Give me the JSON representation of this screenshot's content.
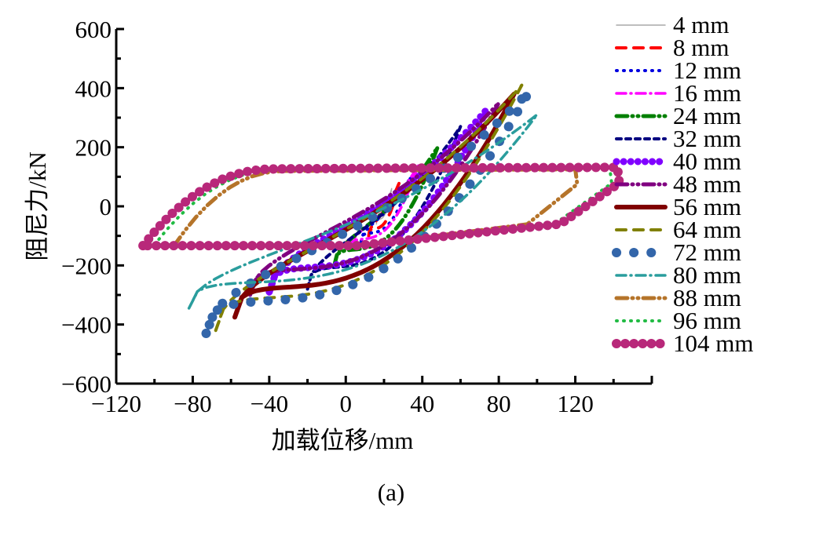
{
  "chart_data": {
    "type": "line",
    "title": "",
    "xlabel": "加载位移/mm",
    "ylabel": "阻尼力/kN",
    "caption": "(a)",
    "xlim": [
      -120,
      160
    ],
    "ylim": [
      -600,
      600
    ],
    "xticks": [
      -120,
      -80,
      -40,
      0,
      40,
      80,
      120
    ],
    "xtick_labels": [
      "−120",
      "−80",
      "−40",
      "0",
      "40",
      "80",
      "120"
    ],
    "yticks": [
      -600,
      -400,
      -200,
      0,
      200,
      400,
      600
    ],
    "ytick_labels": [
      "−600",
      "−400",
      "−200",
      "0",
      "200",
      "400",
      "600"
    ],
    "grid": false,
    "legend_position": "right",
    "series": [
      {
        "name": "4 mm",
        "color": "#a8a8a8",
        "style": "solid",
        "xrange": [
          16,
          24
        ],
        "force_range": [
          -60,
          60
        ],
        "shape": "lens"
      },
      {
        "name": "8 mm",
        "color": "#ff0000",
        "style": "dash",
        "xrange": [
          12,
          28
        ],
        "force_range": [
          -100,
          80
        ],
        "shape": "lens"
      },
      {
        "name": "12 mm",
        "color": "#0000e0",
        "style": "dot",
        "xrange": [
          8,
          34
        ],
        "force_range": [
          -120,
          100
        ],
        "shape": "lens"
      },
      {
        "name": "16 mm",
        "color": "#ff00ff",
        "style": "dashdot",
        "xrange": [
          2,
          38
        ],
        "force_range": [
          -150,
          140
        ],
        "shape": "lens"
      },
      {
        "name": "24 mm",
        "color": "#008000",
        "style": "dashdotdot",
        "xrange": [
          -6,
          48
        ],
        "force_range": [
          -200,
          200
        ],
        "shape": "lens"
      },
      {
        "name": "32 mm",
        "color": "#000080",
        "style": "shortdash",
        "xrange": [
          -20,
          60
        ],
        "force_range": [
          -280,
          270
        ],
        "shape": "lens"
      },
      {
        "name": "40 mm",
        "color": "#8000ff",
        "style": "dense-dot",
        "xrange": [
          -40,
          74
        ],
        "force_range": [
          -290,
          330
        ],
        "shape": "lens"
      },
      {
        "name": "48 mm",
        "color": "#800080",
        "style": "dashdotdot",
        "xrange": [
          -50,
          80
        ],
        "force_range": [
          -300,
          350
        ],
        "shape": "lens"
      },
      {
        "name": "56 mm",
        "color": "#800000",
        "style": "solid-thick",
        "xrange": [
          -58,
          88
        ],
        "force_range": [
          -375,
          380
        ],
        "shape": "lens"
      },
      {
        "name": "64 mm",
        "color": "#808000",
        "style": "dash",
        "xrange": [
          -68,
          92
        ],
        "force_range": [
          -420,
          410
        ],
        "shape": "lens"
      },
      {
        "name": "72 mm",
        "color": "#3366aa",
        "style": "big-dot",
        "xrange": [
          -73,
          96
        ],
        "force_range": [
          -430,
          390
        ],
        "shape": "lens"
      },
      {
        "name": "80 mm",
        "color": "#2a9d9d",
        "style": "dashdot",
        "xrange": [
          -82,
          100
        ],
        "force_range": [
          -345,
          310
        ],
        "shape": "lens"
      },
      {
        "name": "88 mm",
        "color": "#b5742a",
        "style": "dashdotdot",
        "xrange": [
          -90,
          120
        ],
        "force_range": [
          -135,
          125
        ],
        "shape": "parallelogram"
      },
      {
        "name": "96 mm",
        "color": "#22bb44",
        "style": "dot",
        "xrange": [
          -100,
          138
        ],
        "force_range": [
          -130,
          130
        ],
        "shape": "parallelogram"
      },
      {
        "name": "104 mm",
        "color": "#b8287a",
        "style": "dense-bigdot",
        "xrange": [
          -106,
          142
        ],
        "force_range": [
          -133,
          132
        ],
        "shape": "parallelogram"
      }
    ]
  }
}
